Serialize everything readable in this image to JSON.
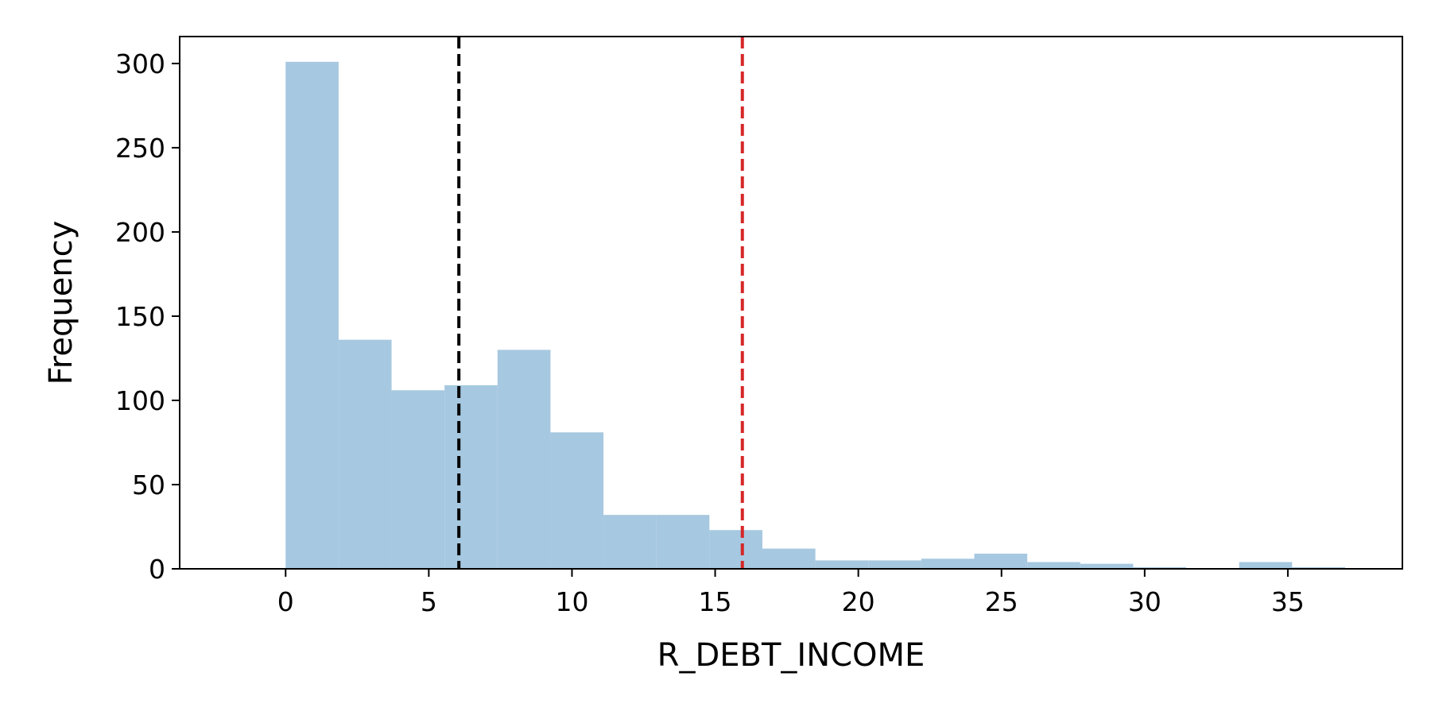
{
  "chart_data": {
    "type": "histogram",
    "xlabel": "R_DEBT_INCOME",
    "ylabel": "Frequency",
    "xlim": [
      -3.7,
      39.0
    ],
    "ylim": [
      0,
      316
    ],
    "bin_edges": [
      0.0,
      1.85,
      3.7,
      5.55,
      7.4,
      9.25,
      11.1,
      12.95,
      14.8,
      16.65,
      18.5,
      20.35,
      22.2,
      24.05,
      25.9,
      27.75,
      29.6,
      31.45,
      33.3,
      35.15,
      37.0
    ],
    "values": [
      301,
      136,
      106,
      109,
      130,
      81,
      32,
      32,
      23,
      12,
      5,
      5,
      6,
      9,
      4,
      3,
      1,
      0,
      4,
      1
    ],
    "bar_color": "#a6c8e0",
    "xticks": [
      0,
      5,
      10,
      15,
      20,
      25,
      30,
      35
    ],
    "yticks": [
      0,
      50,
      100,
      150,
      200,
      250,
      300
    ],
    "reference_lines": [
      {
        "x": 6.05,
        "color": "#000000",
        "style": "dashed"
      },
      {
        "x": 15.95,
        "color": "#d62728",
        "style": "dashed"
      }
    ]
  }
}
